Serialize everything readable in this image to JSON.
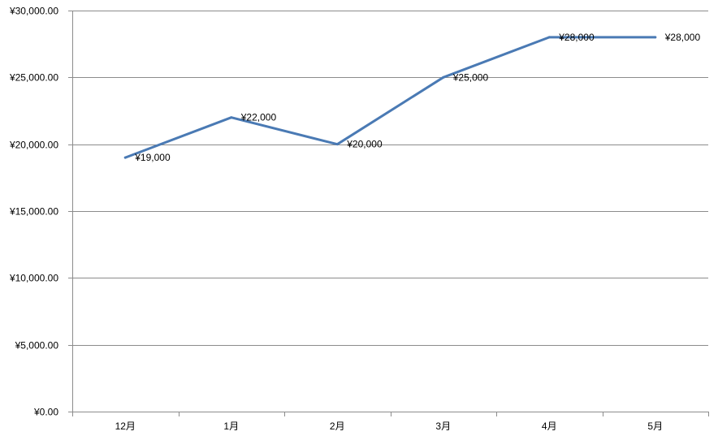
{
  "chart_data": {
    "type": "line",
    "title": "",
    "xlabel": "",
    "ylabel": "",
    "categories": [
      "12月",
      "1月",
      "2月",
      "3月",
      "4月",
      "5月"
    ],
    "series": [
      {
        "values": [
          19000,
          22000,
          20000,
          25000,
          28000,
          28000
        ],
        "data_labels": [
          "¥19,000",
          "¥22,000",
          "¥20,000",
          "¥25,000",
          "¥28,000",
          "¥28,000"
        ],
        "color": "#4a7ab4"
      }
    ],
    "ylim": [
      0,
      30000
    ],
    "y_ticks": [
      0,
      5000,
      10000,
      15000,
      20000,
      25000,
      30000
    ],
    "y_tick_labels": [
      "¥0.00",
      "¥5,000.00",
      "¥10,000.00",
      "¥15,000.00",
      "¥20,000.00",
      "¥25,000.00",
      "¥30,000.00"
    ],
    "grid": true,
    "legend": "none"
  }
}
